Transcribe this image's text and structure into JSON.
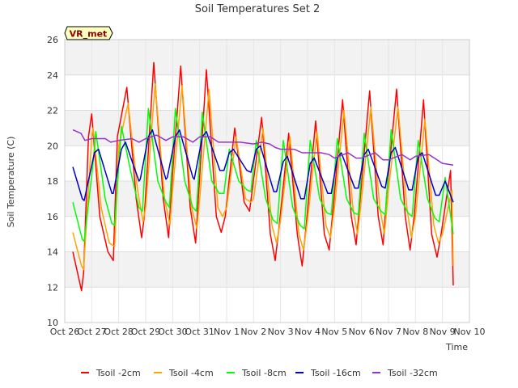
{
  "chart_data": {
    "type": "line",
    "title": "Soil Temperatures Set 2",
    "xlabel": "Time",
    "ylabel": "Soil Temperature (C)",
    "station_label": "VR_met",
    "x_ticks": [
      "Oct 26",
      "Oct 27",
      "Oct 28",
      "Oct 29",
      "Oct 30",
      "Oct 31",
      "Nov 1",
      "Nov 2",
      "Nov 3",
      "Nov 4",
      "Nov 5",
      "Nov 6",
      "Nov 7",
      "Nov 8",
      "Nov 9",
      "Nov 10"
    ],
    "y_ticks": [
      10,
      12,
      14,
      16,
      18,
      20,
      22,
      24,
      26
    ],
    "xlim": [
      0,
      15
    ],
    "ylim": [
      10,
      26
    ],
    "grid": true,
    "legend_position": "bottom",
    "x_units": "days since Oct 26",
    "series": [
      {
        "name": "Tsoil -2cm",
        "color": "#ff0000",
        "x": [
          0.3,
          0.55,
          0.62,
          0.7,
          0.88,
          1.0,
          1.3,
          1.6,
          1.8,
          1.95,
          2.3,
          2.65,
          2.85,
          2.95,
          3.3,
          3.65,
          3.85,
          3.95,
          4.3,
          4.65,
          4.85,
          4.95,
          5.25,
          5.62,
          5.8,
          5.95,
          6.3,
          6.65,
          6.85,
          6.95,
          7.3,
          7.62,
          7.8,
          7.95,
          8.3,
          8.62,
          8.8,
          8.95,
          9.3,
          9.62,
          9.8,
          9.95,
          10.3,
          10.62,
          10.8,
          10.95,
          11.3,
          11.62,
          11.8,
          11.95,
          12.3,
          12.62,
          12.8,
          12.95,
          13.3,
          13.6,
          13.8,
          13.95,
          14.3,
          14.4
        ],
        "values": [
          14.0,
          12.3,
          11.8,
          12.8,
          20.5,
          21.8,
          16.0,
          14.0,
          13.5,
          20.5,
          23.3,
          17.0,
          14.8,
          16.0,
          24.7,
          17.0,
          14.8,
          17.5,
          24.5,
          16.5,
          14.5,
          17.0,
          24.3,
          16.0,
          15.1,
          16.0,
          21.0,
          16.8,
          16.3,
          17.5,
          21.6,
          15.0,
          13.5,
          15.5,
          20.7,
          15.0,
          13.2,
          15.5,
          21.4,
          15.0,
          14.1,
          16.5,
          22.6,
          16.0,
          14.4,
          17.0,
          23.1,
          16.0,
          14.4,
          17.5,
          23.2,
          16.0,
          14.1,
          16.0,
          22.6,
          15.0,
          13.7,
          15.0,
          18.6,
          12.1
        ]
      },
      {
        "name": "Tsoil -4cm",
        "color": "#ffa500",
        "x": [
          0.3,
          0.62,
          0.7,
          1.0,
          1.05,
          1.35,
          1.65,
          1.85,
          2.0,
          2.35,
          2.7,
          2.9,
          3.0,
          3.35,
          3.7,
          3.9,
          4.0,
          4.35,
          4.7,
          4.9,
          5.0,
          5.35,
          5.68,
          5.85,
          6.0,
          6.35,
          6.7,
          6.9,
          7.0,
          7.35,
          7.68,
          7.85,
          8.0,
          8.35,
          8.68,
          8.85,
          9.0,
          9.35,
          9.68,
          9.85,
          10.0,
          10.35,
          10.68,
          10.85,
          11.0,
          11.35,
          11.68,
          11.85,
          12.0,
          12.35,
          12.68,
          12.85,
          13.0,
          13.35,
          13.68,
          13.85,
          14.0,
          14.35,
          14.4
        ],
        "values": [
          15.1,
          13.2,
          13.0,
          20.5,
          21.0,
          16.5,
          14.5,
          14.3,
          20.0,
          22.4,
          17.5,
          15.7,
          16.5,
          23.5,
          17.0,
          15.5,
          17.5,
          23.4,
          16.5,
          15.3,
          17.0,
          23.2,
          16.5,
          16.0,
          16.5,
          20.5,
          17.0,
          16.8,
          17.0,
          21.0,
          15.5,
          14.5,
          15.8,
          20.5,
          15.0,
          14.1,
          15.8,
          20.8,
          15.5,
          14.8,
          16.5,
          22.0,
          16.5,
          15.0,
          17.0,
          22.2,
          16.5,
          15.0,
          17.5,
          22.2,
          16.5,
          14.8,
          16.0,
          21.5,
          15.5,
          14.5,
          15.0,
          17.5,
          13.2
        ]
      },
      {
        "name": "Tsoil -8cm",
        "color": "#00ff00",
        "x": [
          0.3,
          0.65,
          0.72,
          1.05,
          1.15,
          1.5,
          1.75,
          1.85,
          2.1,
          2.45,
          2.75,
          2.88,
          3.1,
          3.45,
          3.75,
          3.88,
          4.1,
          4.45,
          4.75,
          4.88,
          5.1,
          5.45,
          5.72,
          5.9,
          6.1,
          6.45,
          6.75,
          6.9,
          7.1,
          7.45,
          7.72,
          7.88,
          8.1,
          8.45,
          8.72,
          8.88,
          9.1,
          9.45,
          9.72,
          9.88,
          10.1,
          10.45,
          10.72,
          10.88,
          11.1,
          11.45,
          11.72,
          11.88,
          12.1,
          12.45,
          12.72,
          12.88,
          13.1,
          13.45,
          13.72,
          13.88,
          14.1,
          14.4
        ],
        "values": [
          16.8,
          14.7,
          14.6,
          19.0,
          20.8,
          17.0,
          15.6,
          15.5,
          21.1,
          18.5,
          16.5,
          16.3,
          22.1,
          18.0,
          16.8,
          16.5,
          22.1,
          18.0,
          16.5,
          16.3,
          21.9,
          18.0,
          17.3,
          17.3,
          19.8,
          18.0,
          17.5,
          17.4,
          20.3,
          17.0,
          15.8,
          15.6,
          20.3,
          16.5,
          15.5,
          15.3,
          20.3,
          17.0,
          16.2,
          16.1,
          20.4,
          17.0,
          16.2,
          16.1,
          20.7,
          17.0,
          16.3,
          16.1,
          20.9,
          17.0,
          16.2,
          16.0,
          20.3,
          17.0,
          15.9,
          15.7,
          18.2,
          15.0
        ]
      },
      {
        "name": "Tsoil -16cm",
        "color": "#0000cc",
        "x": [
          0.3,
          0.65,
          0.72,
          1.1,
          1.25,
          1.75,
          1.8,
          2.1,
          2.25,
          2.75,
          2.8,
          3.1,
          3.25,
          3.75,
          3.8,
          4.1,
          4.25,
          4.75,
          4.8,
          5.1,
          5.25,
          5.75,
          5.9,
          6.1,
          6.25,
          6.75,
          6.9,
          7.1,
          7.25,
          7.75,
          7.85,
          8.1,
          8.25,
          8.75,
          8.88,
          9.1,
          9.25,
          9.75,
          9.88,
          10.1,
          10.25,
          10.75,
          10.88,
          11.1,
          11.25,
          11.75,
          11.88,
          12.1,
          12.25,
          12.75,
          12.88,
          13.1,
          13.25,
          13.75,
          13.88,
          14.1,
          14.4
        ],
        "values": [
          18.8,
          17.0,
          16.9,
          19.6,
          19.8,
          17.3,
          17.3,
          19.8,
          20.2,
          18.0,
          18.1,
          20.5,
          20.9,
          18.1,
          18.2,
          20.5,
          20.9,
          18.2,
          18.1,
          20.5,
          20.8,
          18.6,
          18.6,
          19.6,
          19.8,
          18.6,
          18.5,
          19.8,
          20.0,
          17.4,
          17.4,
          19.1,
          19.4,
          17.0,
          17.0,
          19.0,
          19.3,
          17.3,
          17.3,
          19.3,
          19.6,
          17.6,
          17.6,
          19.5,
          19.8,
          17.7,
          17.6,
          19.6,
          19.9,
          17.5,
          17.5,
          19.4,
          19.6,
          17.2,
          17.2,
          18.0,
          16.8
        ]
      },
      {
        "name": "Tsoil -32cm",
        "color": "#9932cc",
        "x": [
          0.3,
          0.6,
          0.75,
          1.0,
          1.5,
          1.7,
          2.0,
          2.5,
          2.75,
          3.0,
          3.4,
          3.75,
          4.0,
          4.4,
          4.75,
          5.0,
          5.4,
          5.7,
          6.0,
          6.5,
          7.0,
          7.3,
          7.6,
          7.8,
          8.0,
          8.5,
          8.8,
          9.0,
          9.5,
          9.8,
          10.0,
          10.5,
          10.8,
          11.0,
          11.5,
          11.8,
          12.0,
          12.5,
          12.8,
          13.0,
          13.5,
          13.8,
          14.0,
          14.4
        ],
        "values": [
          20.9,
          20.7,
          20.3,
          20.4,
          20.4,
          20.2,
          20.3,
          20.4,
          20.2,
          20.4,
          20.6,
          20.3,
          20.5,
          20.5,
          20.2,
          20.5,
          20.5,
          20.2,
          20.2,
          20.2,
          20.1,
          20.2,
          20.1,
          19.9,
          19.8,
          19.8,
          19.6,
          19.6,
          19.6,
          19.5,
          19.3,
          19.6,
          19.3,
          19.3,
          19.6,
          19.2,
          19.2,
          19.5,
          19.2,
          19.4,
          19.5,
          19.2,
          19.0,
          18.9
        ]
      }
    ]
  }
}
